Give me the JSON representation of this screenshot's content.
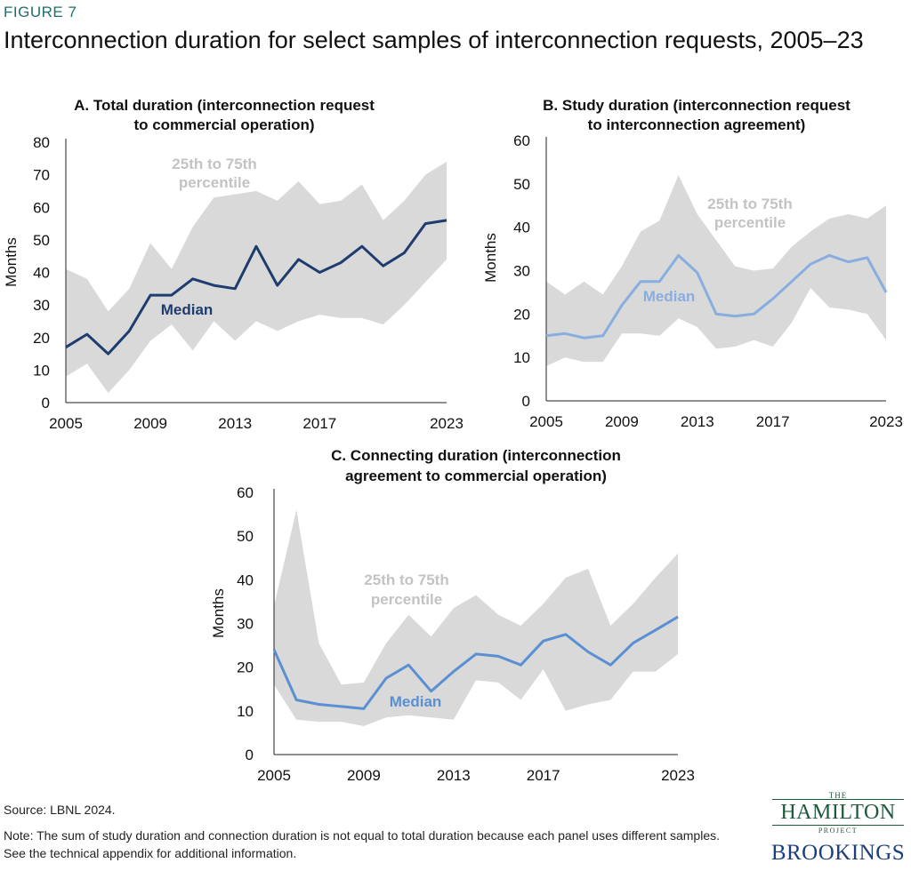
{
  "figure_label": "FIGURE 7",
  "title": "Interconnection duration for select samples of interconnection requests, 2005–23",
  "source": "Source: LBNL 2024.",
  "note": "Note: The sum of study duration and connection duration is not equal to total duration because each panel uses different samples. See the technical appendix for additional information.",
  "logo": {
    "the": "THE",
    "hamilton": "HAMILTON",
    "project": "PROJECT",
    "brookings": "BROOKINGS"
  },
  "colors": {
    "band": "#d9d9d9",
    "band_label": "#c3c3c3",
    "panel_a": "#1f3c6e",
    "panel_b": "#88aee0",
    "panel_c": "#5a8fd3"
  },
  "chart_data": [
    {
      "type": "area",
      "panel": "a",
      "title_lines": [
        "A. Total duration (interconnection request",
        "to commercial operation)"
      ],
      "ylabel": "Months",
      "ylim": [
        0,
        80
      ],
      "yticks": [
        "0",
        "10",
        "20",
        "30",
        "40",
        "50",
        "60",
        "70",
        "80"
      ],
      "xticks": [
        "2005",
        "2009",
        "2013",
        "2017",
        "2023"
      ],
      "x": [
        2005,
        2006,
        2007,
        2008,
        2009,
        2010,
        2011,
        2012,
        2013,
        2014,
        2015,
        2016,
        2017,
        2018,
        2019,
        2020,
        2021,
        2022,
        2023
      ],
      "series": [
        {
          "name": "Median",
          "label": "Median",
          "values": [
            17,
            21,
            15,
            22,
            33,
            33,
            38,
            36,
            35,
            48,
            36,
            44,
            40,
            43,
            48,
            42,
            46,
            55,
            56
          ]
        },
        {
          "name": "25th percentile",
          "values": [
            8,
            12,
            3,
            10,
            19,
            24,
            16,
            25,
            19,
            25,
            22,
            25,
            27,
            26,
            26,
            24,
            30,
            37,
            44
          ]
        },
        {
          "name": "75th percentile",
          "values": [
            41,
            38,
            28,
            35,
            49,
            41,
            54,
            63,
            64,
            65,
            62,
            68,
            61,
            62,
            67,
            56,
            62,
            70,
            74
          ]
        }
      ],
      "band_label_lines": [
        "25th to 75th",
        "percentile"
      ]
    },
    {
      "type": "area",
      "panel": "b",
      "title_lines": [
        "B. Study duration (interconnection request",
        "to interconnection agreement)"
      ],
      "ylabel": "Months",
      "ylim": [
        0,
        60
      ],
      "yticks": [
        "0",
        "10",
        "20",
        "30",
        "40",
        "50",
        "60"
      ],
      "xticks": [
        "2005",
        "2009",
        "2013",
        "2017",
        "2023"
      ],
      "x": [
        2005,
        2006,
        2007,
        2008,
        2009,
        2010,
        2011,
        2012,
        2013,
        2014,
        2015,
        2016,
        2017,
        2018,
        2019,
        2020,
        2021,
        2022,
        2023
      ],
      "series": [
        {
          "name": "Median",
          "label": "Median",
          "values": [
            15,
            15.5,
            14.5,
            15,
            22,
            27.5,
            27.5,
            33.5,
            29.5,
            20,
            19.5,
            20,
            23.5,
            27.5,
            31.5,
            33.5,
            32,
            33,
            25
          ]
        },
        {
          "name": "25th percentile",
          "values": [
            8,
            10,
            9,
            9,
            15.5,
            15.5,
            15,
            19,
            17,
            12,
            12.5,
            14,
            12.5,
            18,
            26,
            21.5,
            21,
            20,
            14
          ]
        },
        {
          "name": "75th percentile",
          "values": [
            27.5,
            24.5,
            27.5,
            24.5,
            31,
            39,
            41.5,
            52,
            43,
            37,
            31,
            30,
            30.5,
            35.5,
            39,
            42,
            43,
            42,
            45
          ]
        }
      ],
      "band_label_lines": [
        "25th to 75th",
        "percentile"
      ]
    },
    {
      "type": "area",
      "panel": "c",
      "title_lines": [
        "C. Connecting duration (interconnection",
        "agreement to commercial operation)"
      ],
      "ylabel": "Months",
      "ylim": [
        0,
        60
      ],
      "yticks": [
        "0",
        "10",
        "20",
        "30",
        "40",
        "50",
        "60"
      ],
      "xticks": [
        "2005",
        "2009",
        "2013",
        "2017",
        "2023"
      ],
      "x": [
        2005,
        2006,
        2007,
        2008,
        2009,
        2010,
        2011,
        2012,
        2013,
        2014,
        2015,
        2016,
        2017,
        2018,
        2019,
        2020,
        2021,
        2022,
        2023
      ],
      "series": [
        {
          "name": "Median",
          "label": "Median",
          "values": [
            24,
            12.5,
            11.5,
            11,
            10.5,
            17.5,
            20.5,
            14.5,
            19,
            23,
            22.5,
            20.5,
            26,
            27.5,
            23.5,
            20.5,
            25.5,
            28.5,
            31.5
          ]
        },
        {
          "name": "25th percentile",
          "values": [
            16,
            8,
            7.5,
            7.5,
            6.5,
            8.5,
            9,
            8.5,
            8,
            17,
            16.5,
            12.5,
            19.5,
            10,
            11.5,
            12.5,
            19,
            19,
            23
          ]
        },
        {
          "name": "75th percentile",
          "values": [
            34,
            56,
            25.5,
            16,
            16.5,
            25.5,
            32,
            27,
            33.5,
            36.5,
            32,
            29.5,
            34.5,
            40.5,
            42.5,
            29.5,
            34.5,
            40.5,
            46
          ]
        }
      ],
      "band_label_lines": [
        "25th to 75th",
        "percentile"
      ]
    }
  ]
}
